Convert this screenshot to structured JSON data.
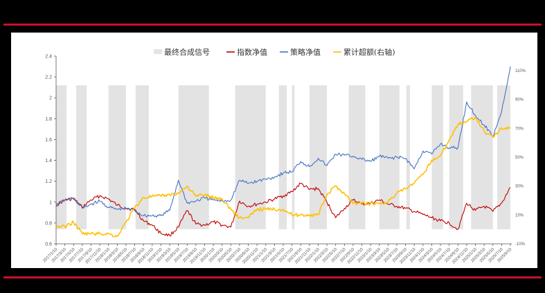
{
  "colors": {
    "rule": "#c8102e",
    "signal": "#e3e3e3",
    "index_nav": "#c00000",
    "strategy_nav": "#4472c4",
    "excess": "#ffc000",
    "axis": "#555555"
  },
  "legend": [
    {
      "key": "signal",
      "label": "最终合成信号",
      "type": "area"
    },
    {
      "key": "index_nav",
      "label": "指数净值",
      "type": "line"
    },
    {
      "key": "strategy_nav",
      "label": "策略净值",
      "type": "line"
    },
    {
      "key": "excess",
      "label": "累计超额(右轴)",
      "type": "line"
    }
  ],
  "chart_data": {
    "type": "line",
    "title": "",
    "xlabel": "",
    "ylabel": "",
    "ylim": [
      0.6,
      2.4
    ],
    "y_ticks": [
      "0.6",
      "0.8",
      "1",
      "1.2",
      "1.4",
      "1.6",
      "1.8",
      "2",
      "2.2",
      "2.4"
    ],
    "y2lim": [
      -10,
      110
    ],
    "y2_ticks": [
      "-10%",
      "10%",
      "30%",
      "50%",
      "70%",
      "90%",
      "110%"
    ],
    "legend_position": "top",
    "grid": false,
    "categories": [
      "2017/1/10",
      "2017/3/10",
      "2017/5/10",
      "2017/7/10",
      "2017/9/10",
      "2017/11/10",
      "2018/1/10",
      "2018/3/10",
      "2018/5/10",
      "2018/7/10",
      "2018/9/10",
      "2018/11/10",
      "2019/1/10",
      "2019/3/10",
      "2019/5/10",
      "2019/7/10",
      "2019/9/10",
      "2019/11/10",
      "2020/1/10",
      "2020/3/10",
      "2020/5/10",
      "2020/7/10",
      "2020/9/10",
      "2020/11/10",
      "2021/1/10",
      "2021/3/10",
      "2021/5/10",
      "2021/7/10",
      "2021/9/10",
      "2021/11/10",
      "2022/1/10",
      "2022/3/10",
      "2022/5/10",
      "2022/7/10",
      "2022/9/10",
      "2022/11/10",
      "2023/1/10",
      "2023/3/10",
      "2023/5/10",
      "2023/7/10",
      "2023/9/10",
      "2023/11/10",
      "2024/1/10",
      "2024/3/10",
      "2024/5/10",
      "2024/7/10",
      "2024/9/10",
      "2024/11/10",
      "2025/1/10",
      "2025/3/10",
      "2025/5/10",
      "2025/7/10",
      "2025/9/10"
    ],
    "series": [
      {
        "name": "指数净值",
        "axis": "left",
        "values": [
          0.97,
          1.02,
          1.03,
          0.95,
          1.02,
          1.06,
          1.03,
          0.97,
          0.94,
          0.93,
          0.82,
          0.78,
          0.7,
          0.68,
          0.76,
          0.92,
          0.79,
          0.78,
          0.81,
          0.78,
          0.76,
          1.01,
          0.96,
          0.98,
          1.0,
          1.03,
          1.06,
          1.1,
          1.18,
          1.12,
          1.13,
          1.0,
          0.85,
          0.94,
          1.02,
          0.98,
          0.99,
          1.02,
          0.98,
          0.96,
          0.94,
          0.91,
          0.88,
          0.85,
          0.82,
          0.8,
          0.74,
          0.99,
          0.92,
          0.96,
          0.91,
          0.99,
          1.14
        ]
      },
      {
        "name": "策略净值",
        "axis": "left",
        "values": [
          0.97,
          1.02,
          1.04,
          0.94,
          0.98,
          1.01,
          0.95,
          0.93,
          0.94,
          0.92,
          0.87,
          0.87,
          0.87,
          0.92,
          1.21,
          0.99,
          1.01,
          1.04,
          1.02,
          1.01,
          1.02,
          1.21,
          1.18,
          1.2,
          1.22,
          1.24,
          1.28,
          1.29,
          1.39,
          1.34,
          1.42,
          1.35,
          1.46,
          1.45,
          1.44,
          1.41,
          1.39,
          1.44,
          1.42,
          1.43,
          1.42,
          1.32,
          1.49,
          1.46,
          1.56,
          1.52,
          1.52,
          1.96,
          1.83,
          1.74,
          1.63,
          1.87,
          2.3
        ]
      },
      {
        "name": "累计超额(右轴)",
        "axis": "right",
        "unit": "%",
        "values": [
          2,
          2,
          5,
          -3,
          -3,
          -3,
          -3,
          -5,
          5,
          15,
          22,
          23,
          23,
          24,
          25,
          30,
          23,
          24,
          22,
          21,
          14,
          8,
          8,
          14,
          14,
          14,
          14,
          10,
          10,
          10,
          10,
          24,
          30,
          25,
          18,
          18,
          18,
          18,
          19,
          25,
          28,
          32,
          38,
          48,
          51,
          62,
          73,
          75,
          78,
          68,
          64,
          70,
          70
        ]
      },
      {
        "name": "最终合成信号",
        "axis": "left",
        "type": "area",
        "segments_on": [
          [
            0,
            1.2
          ],
          [
            2.3,
            3.5
          ],
          [
            6.0,
            8.0
          ],
          [
            9.1,
            10.6
          ],
          [
            14.0,
            17.5
          ],
          [
            20.5,
            24
          ],
          [
            25.5,
            26.4
          ],
          [
            27.0,
            27.3
          ],
          [
            29.0,
            31.0
          ],
          [
            33.5,
            35.4
          ],
          [
            37.0,
            39.3
          ],
          [
            40.1,
            40.5
          ],
          [
            43.0,
            44.3
          ],
          [
            45.0,
            46.6
          ],
          [
            47.5,
            50.0
          ],
          [
            50.5,
            53
          ]
        ],
        "band": [
          0.74,
          2.12
        ]
      }
    ]
  }
}
